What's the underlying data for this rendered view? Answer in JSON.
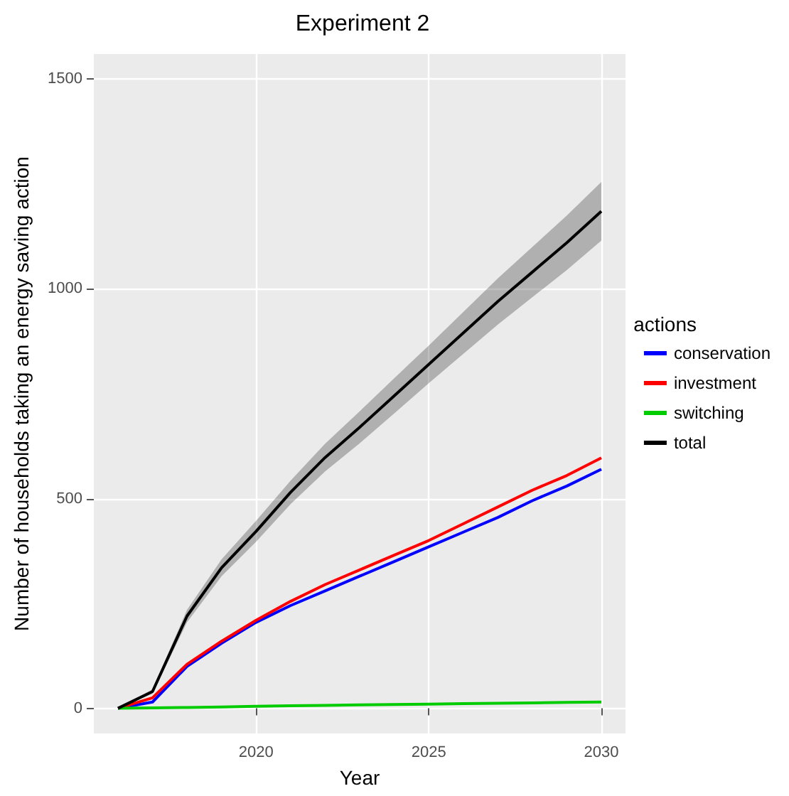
{
  "chart_data": {
    "type": "line",
    "title": "Experiment 2",
    "xlabel": "Year",
    "ylabel": "Number of households taking an energy saving action",
    "legend_title": "actions",
    "x": [
      2016,
      2017,
      2018,
      2019,
      2020,
      2021,
      2022,
      2023,
      2024,
      2025,
      2026,
      2027,
      2028,
      2029,
      2030
    ],
    "series": [
      {
        "name": "conservation",
        "color": "#0000ff",
        "values": [
          0,
          15,
          100,
          155,
          205,
          245,
          280,
          315,
          350,
          385,
          420,
          455,
          495,
          530,
          570
        ]
      },
      {
        "name": "investment",
        "color": "#ff0000",
        "values": [
          0,
          25,
          105,
          160,
          210,
          255,
          295,
          330,
          365,
          400,
          440,
          480,
          520,
          555,
          597
        ]
      },
      {
        "name": "switching",
        "color": "#00cc00",
        "values": [
          0,
          1,
          2,
          3,
          5,
          6,
          7,
          8,
          9,
          10,
          11,
          12,
          13,
          14,
          15
        ]
      },
      {
        "name": "total",
        "color": "#000000",
        "values": [
          0,
          40,
          220,
          335,
          422,
          515,
          598,
          670,
          745,
          820,
          895,
          970,
          1040,
          1110,
          1185
        ],
        "lower": [
          0,
          35,
          205,
          315,
          397,
          487,
          565,
          632,
          703,
          775,
          845,
          915,
          980,
          1045,
          1115
        ],
        "upper": [
          0,
          45,
          235,
          355,
          447,
          543,
          631,
          708,
          787,
          865,
          945,
          1025,
          1100,
          1175,
          1255
        ]
      }
    ],
    "xlim": [
      2015.3,
      2030.7
    ],
    "xticks": [
      2020,
      2025,
      2030
    ],
    "ylim": [
      -60,
      1560
    ],
    "yticks": [
      0,
      500,
      1000,
      1500
    ],
    "grid": true,
    "legend": "right",
    "marker": "none",
    "line_style": "solid"
  }
}
